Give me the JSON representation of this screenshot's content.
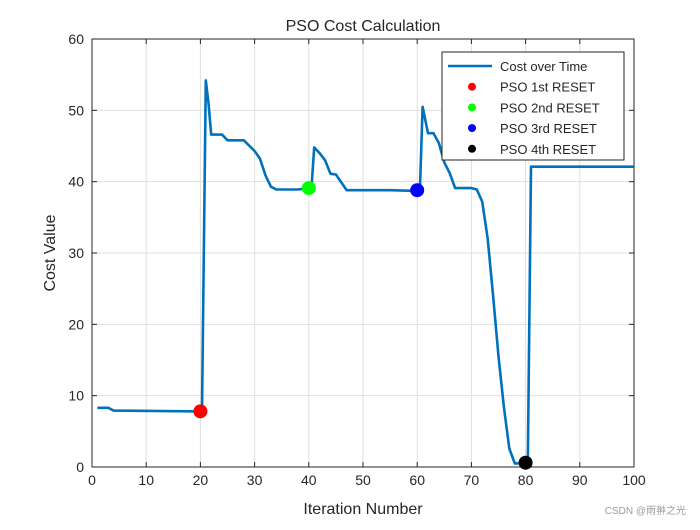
{
  "chart_data": {
    "type": "line",
    "title": "PSO Cost Calculation",
    "xlabel": "Iteration Number",
    "ylabel": "Cost Value",
    "xlim": [
      0,
      100
    ],
    "ylim": [
      0,
      60
    ],
    "xticks": [
      0,
      10,
      20,
      30,
      40,
      50,
      60,
      70,
      80,
      90,
      100
    ],
    "yticks": [
      0,
      10,
      20,
      30,
      40,
      50,
      60
    ],
    "grid": true,
    "legend_position": "top-right",
    "series": [
      {
        "name": "Cost over Time",
        "color": "#0072BD",
        "x": [
          1,
          3,
          4,
          20,
          20.3,
          21,
          21.5,
          22,
          24,
          25,
          28,
          30,
          31,
          32,
          33,
          34,
          38,
          40,
          40.5,
          41,
          42,
          43,
          44,
          45,
          46,
          47,
          55,
          60,
          60.5,
          61,
          62,
          63,
          64,
          65,
          66,
          67,
          70,
          71,
          72,
          73,
          74,
          75,
          76,
          77,
          78,
          79,
          80,
          80.4,
          81,
          100
        ],
        "y": [
          8.3,
          8.3,
          7.9,
          7.8,
          7.8,
          54.2,
          51,
          46.6,
          46.6,
          45.8,
          45.8,
          44.3,
          43.2,
          40.9,
          39.3,
          38.9,
          38.9,
          39.1,
          39.2,
          44.8,
          44,
          43,
          41.1,
          41,
          39.9,
          38.8,
          38.8,
          38.7,
          38.8,
          50.5,
          46.8,
          46.8,
          45.4,
          42.7,
          41.2,
          39.1,
          39.1,
          38.9,
          37.2,
          32,
          24,
          15.5,
          8.4,
          2.6,
          0.5,
          0.5,
          0.5,
          0.6,
          42.1,
          42.1
        ]
      },
      {
        "name": "PSO 1st RESET",
        "color": "#ff0000",
        "marker": "circle",
        "x": [
          20
        ],
        "y": [
          7.8
        ]
      },
      {
        "name": "PSO 2nd RESET",
        "color": "#00ff00",
        "marker": "circle",
        "x": [
          40
        ],
        "y": [
          39.1
        ]
      },
      {
        "name": "PSO 3rd RESET",
        "color": "#0000ff",
        "marker": "circle",
        "x": [
          60
        ],
        "y": [
          38.8
        ]
      },
      {
        "name": "PSO 4th RESET",
        "color": "#000000",
        "marker": "circle",
        "x": [
          80
        ],
        "y": [
          0.6
        ]
      }
    ]
  },
  "watermark": "CSDN @雨翀之光"
}
